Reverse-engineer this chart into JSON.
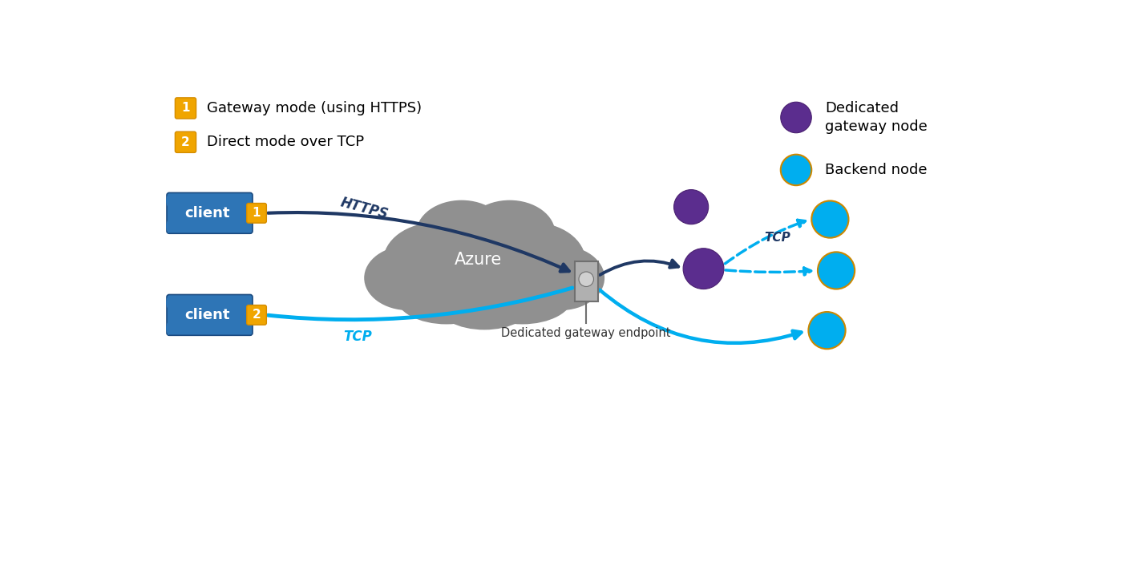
{
  "bg_color": "#ffffff",
  "cloud_color": "#909090",
  "cloud_edge_color": "#909090",
  "client_box_color": "#2E75B6",
  "client_box_edge": "#1a4a80",
  "badge_color": "#F0A500",
  "badge_edge": "#d48c00",
  "dedicated_gw_node_color": "#5B2D8E",
  "dedicated_gw_node_edge": "#4a2070",
  "backend_node_color": "#00AEEF",
  "backend_node_edge": "#d48c00",
  "https_line_color": "#1F3864",
  "tcp_line_color": "#00AEEF",
  "dashed_tcp_color": "#00AEEF",
  "gateway_box_color": "#b0b0b0",
  "gateway_box_edge": "#707070",
  "legend_item1": "Gateway mode (using HTTPS)",
  "legend_item2": "Direct mode over TCP",
  "legend_gw_node": "Dedicated\ngateway node",
  "legend_backend_node": "Backend node",
  "cloud_label": "Azure",
  "gateway_endpoint_label": "Dedicated gateway endpoint",
  "https_label": "HTTPS",
  "tcp_label1": "TCP",
  "tcp_label2": "TCP"
}
